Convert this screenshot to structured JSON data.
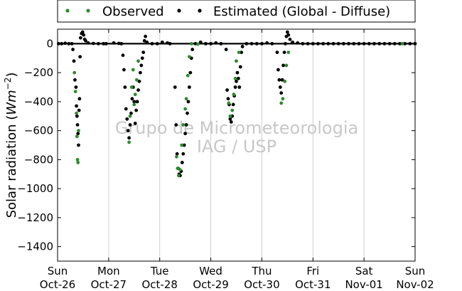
{
  "chart_data": {
    "type": "scatter",
    "ylabel_prefix": "Solar radiation (",
    "ylabel_unit_base": "Wm",
    "ylabel_unit_exp": "−2",
    "ylabel_suffix": ")",
    "ylim": [
      -1500,
      100
    ],
    "yticks": [
      0,
      -200,
      -400,
      -600,
      -800,
      -1000,
      -1200,
      -1400
    ],
    "xlim": [
      0,
      7
    ],
    "xticks": [
      {
        "x": 0,
        "day": "Sun",
        "date": "Oct-26"
      },
      {
        "x": 1,
        "day": "Mon",
        "date": "Oct-27"
      },
      {
        "x": 2,
        "day": "Tue",
        "date": "Oct-28"
      },
      {
        "x": 3,
        "day": "Wed",
        "date": "Oct-29"
      },
      {
        "x": 4,
        "day": "Thu",
        "date": "Oct-30"
      },
      {
        "x": 5,
        "day": "Fri",
        "date": "Oct-31"
      },
      {
        "x": 6,
        "day": "Sat",
        "date": "Nov-01"
      },
      {
        "x": 7,
        "day": "Sun",
        "date": "Nov-02"
      }
    ],
    "grid": "vertical",
    "legend_placement": "top-center",
    "series": [
      {
        "name": "Observed",
        "color": "#2e8b2e",
        "points": [
          [
            0.33,
            -200
          ],
          [
            0.35,
            -330
          ],
          [
            0.37,
            -480
          ],
          [
            0.38,
            -640
          ],
          [
            0.39,
            -800
          ],
          [
            0.4,
            -820
          ],
          [
            0.41,
            -600
          ],
          [
            1.4,
            -680
          ],
          [
            1.42,
            -500
          ],
          [
            1.45,
            -300
          ],
          [
            1.48,
            -180
          ],
          [
            1.5,
            -420
          ],
          [
            1.52,
            -350
          ],
          [
            1.55,
            -250
          ],
          [
            1.58,
            -120
          ],
          [
            2.33,
            -780
          ],
          [
            2.35,
            -860
          ],
          [
            2.37,
            -910
          ],
          [
            2.4,
            -870
          ],
          [
            2.43,
            -700
          ],
          [
            2.46,
            -560
          ],
          [
            2.5,
            -450
          ],
          [
            2.52,
            -380
          ],
          [
            2.55,
            -220
          ],
          [
            2.58,
            -90
          ],
          [
            2.62,
            0
          ],
          [
            2.75,
            -3
          ],
          [
            3.35,
            -410
          ],
          [
            3.38,
            -500
          ],
          [
            3.42,
            -460
          ],
          [
            3.45,
            -350
          ],
          [
            3.48,
            -240
          ],
          [
            3.5,
            -120
          ],
          [
            3.55,
            -60
          ],
          [
            4.38,
            -410
          ],
          [
            4.41,
            -380
          ],
          [
            4.45,
            -260
          ],
          [
            4.48,
            -150
          ],
          [
            4.52,
            -60
          ],
          [
            6.75,
            0
          ]
        ]
      },
      {
        "name": "Estimated (Global - Diffuse)",
        "color": "#000000",
        "points": [
          [
            0.02,
            0
          ],
          [
            0.08,
            0
          ],
          [
            0.15,
            3
          ],
          [
            0.22,
            0
          ],
          [
            0.28,
            0
          ],
          [
            0.3,
            -40
          ],
          [
            0.32,
            -120
          ],
          [
            0.34,
            -250
          ],
          [
            0.36,
            -300
          ],
          [
            0.37,
            -430
          ],
          [
            0.38,
            -500
          ],
          [
            0.39,
            -560
          ],
          [
            0.4,
            -620
          ],
          [
            0.41,
            -700
          ],
          [
            0.42,
            -460
          ],
          [
            0.43,
            -380
          ],
          [
            0.44,
            -90
          ],
          [
            0.45,
            40
          ],
          [
            0.47,
            70
          ],
          [
            0.49,
            80
          ],
          [
            0.51,
            60
          ],
          [
            0.53,
            30
          ],
          [
            0.55,
            20
          ],
          [
            0.6,
            5
          ],
          [
            0.7,
            2
          ],
          [
            0.8,
            0
          ],
          [
            0.9,
            0
          ],
          [
            0.95,
            0
          ],
          [
            1.1,
            5
          ],
          [
            1.2,
            2
          ],
          [
            1.25,
            0
          ],
          [
            1.28,
            -80
          ],
          [
            1.3,
            -180
          ],
          [
            1.32,
            -300
          ],
          [
            1.34,
            -450
          ],
          [
            1.36,
            -520
          ],
          [
            1.38,
            -600
          ],
          [
            1.4,
            -650
          ],
          [
            1.42,
            -560
          ],
          [
            1.44,
            -480
          ],
          [
            1.46,
            -380
          ],
          [
            1.48,
            -300
          ],
          [
            1.5,
            -400
          ],
          [
            1.52,
            -550
          ],
          [
            1.54,
            -460
          ],
          [
            1.56,
            -400
          ],
          [
            1.58,
            -320
          ],
          [
            1.6,
            -260
          ],
          [
            1.62,
            -200
          ],
          [
            1.64,
            -150
          ],
          [
            1.66,
            -100
          ],
          [
            1.68,
            -60
          ],
          [
            1.7,
            20
          ],
          [
            1.72,
            50
          ],
          [
            1.75,
            10
          ],
          [
            1.85,
            0
          ],
          [
            1.95,
            0
          ],
          [
            2.05,
            10
          ],
          [
            2.15,
            5
          ],
          [
            2.2,
            0
          ],
          [
            2.3,
            -300
          ],
          [
            2.32,
            -560
          ],
          [
            2.34,
            -760
          ],
          [
            2.36,
            -860
          ],
          [
            2.38,
            -900
          ],
          [
            2.4,
            -910
          ],
          [
            2.42,
            -880
          ],
          [
            2.44,
            -820
          ],
          [
            2.46,
            -760
          ],
          [
            2.48,
            -700
          ],
          [
            2.5,
            -620
          ],
          [
            2.52,
            -560
          ],
          [
            2.54,
            -480
          ],
          [
            2.56,
            -400
          ],
          [
            2.58,
            -300
          ],
          [
            2.6,
            -200
          ],
          [
            2.62,
            -100
          ],
          [
            2.64,
            -40
          ],
          [
            2.7,
            0
          ],
          [
            2.8,
            10
          ],
          [
            2.9,
            0
          ],
          [
            3.0,
            0
          ],
          [
            3.1,
            5
          ],
          [
            3.2,
            0
          ],
          [
            3.3,
            -40
          ],
          [
            3.32,
            -320
          ],
          [
            3.34,
            -380
          ],
          [
            3.36,
            -420
          ],
          [
            3.38,
            -520
          ],
          [
            3.4,
            -540
          ],
          [
            3.42,
            -500
          ],
          [
            3.44,
            -420
          ],
          [
            3.46,
            -360
          ],
          [
            3.48,
            -300
          ],
          [
            3.5,
            -260
          ],
          [
            3.52,
            -200
          ],
          [
            3.54,
            -240
          ],
          [
            3.56,
            -300
          ],
          [
            3.58,
            -160
          ],
          [
            3.6,
            -60
          ],
          [
            3.62,
            -20
          ],
          [
            3.7,
            0
          ],
          [
            3.8,
            0
          ],
          [
            3.9,
            0
          ],
          [
            4.0,
            0
          ],
          [
            4.1,
            5
          ],
          [
            4.2,
            0
          ],
          [
            4.3,
            -60
          ],
          [
            4.32,
            -180
          ],
          [
            4.34,
            -250
          ],
          [
            4.36,
            -300
          ],
          [
            4.38,
            -340
          ],
          [
            4.4,
            -250
          ],
          [
            4.42,
            -150
          ],
          [
            4.44,
            -60
          ],
          [
            4.46,
            0
          ],
          [
            4.48,
            50
          ],
          [
            4.5,
            80
          ],
          [
            4.52,
            60
          ],
          [
            4.55,
            30
          ],
          [
            4.6,
            10
          ],
          [
            4.7,
            5
          ],
          [
            4.8,
            0
          ],
          [
            4.9,
            0
          ],
          [
            5.0,
            0
          ],
          [
            5.1,
            0
          ],
          [
            5.2,
            0
          ],
          [
            5.3,
            0
          ],
          [
            5.4,
            0
          ],
          [
            5.5,
            0
          ],
          [
            5.6,
            0
          ],
          [
            5.7,
            0
          ],
          [
            5.8,
            0
          ],
          [
            5.9,
            0
          ],
          [
            6.0,
            0
          ],
          [
            6.1,
            0
          ],
          [
            6.2,
            0
          ],
          [
            6.3,
            0
          ],
          [
            6.4,
            0
          ],
          [
            6.5,
            0
          ],
          [
            6.6,
            0
          ],
          [
            6.7,
            0
          ],
          [
            6.8,
            0
          ],
          [
            6.9,
            0
          ],
          [
            7.0,
            0
          ]
        ]
      }
    ]
  },
  "watermark": {
    "line1": "Grupo de Micrometeorologia",
    "line2": "IAG / USP"
  }
}
